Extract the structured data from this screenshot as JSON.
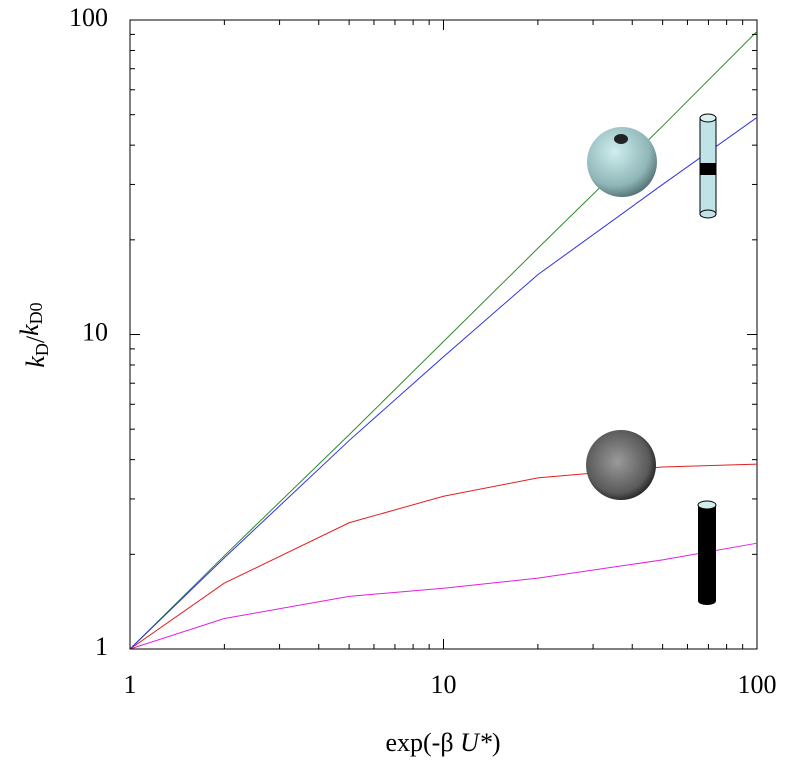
{
  "chart_data": {
    "type": "line",
    "x": [
      1,
      2,
      5,
      10,
      20,
      50,
      100
    ],
    "series": [
      {
        "name": "sphere reactive patch",
        "color": "#2e8b2e",
        "values": [
          1,
          1.98,
          4.8,
          9.5,
          18.8,
          46,
          92
        ]
      },
      {
        "name": "cylinder reactive band",
        "color": "#3030e0",
        "values": [
          1,
          1.95,
          4.6,
          8.5,
          15.5,
          30,
          49
        ]
      },
      {
        "name": "sphere uniform",
        "color": "#e02020",
        "values": [
          1,
          1.62,
          2.52,
          3.06,
          3.5,
          3.79,
          3.87
        ]
      },
      {
        "name": "cylinder uniform",
        "color": "#e020e0",
        "values": [
          1,
          1.25,
          1.47,
          1.56,
          1.68,
          1.92,
          2.17
        ]
      }
    ],
    "xlabel_parts": [
      "exp(-β ",
      "U*",
      ")"
    ],
    "ylabel_parts": [
      "k",
      "D",
      "/",
      "k",
      "D0"
    ],
    "xlim": [
      1,
      100
    ],
    "ylim": [
      1,
      100
    ],
    "xticks": [
      1,
      10,
      100
    ],
    "yticks": [
      1,
      10,
      100
    ],
    "xminorticks": [
      2,
      3,
      4,
      5,
      6,
      7,
      8,
      9,
      20,
      30,
      40,
      50,
      60,
      70,
      80,
      90
    ],
    "yminorticks": [
      2,
      3,
      4,
      5,
      6,
      7,
      8,
      9,
      20,
      30,
      40,
      50,
      60,
      70,
      80,
      90
    ],
    "xscale": "log",
    "yscale": "log"
  }
}
